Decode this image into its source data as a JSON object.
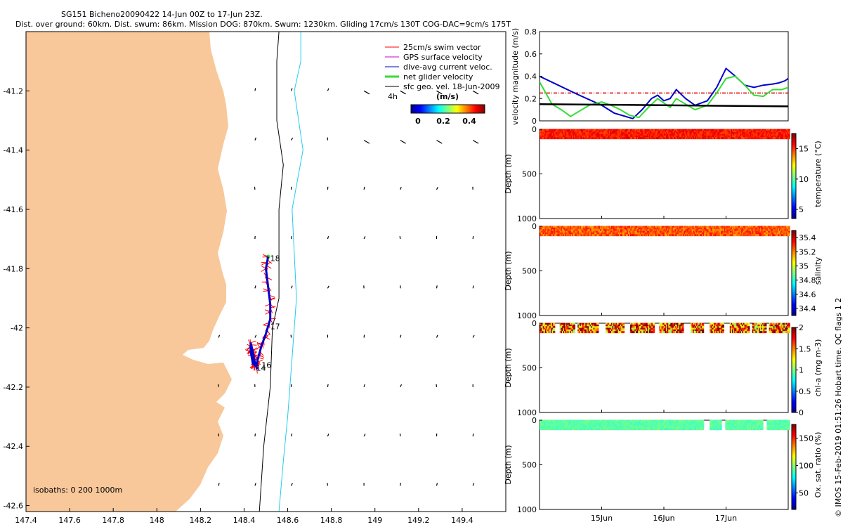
{
  "title": {
    "line1": "SG151 Bicheno20090422 14-Jun 00Z to 17-Jun 23Z.",
    "line2": "Dist. over ground: 60km. Dist. swum: 86km. Mission DOG: 870km. Swum: 1230km. Gliding 17cm/s 130T COG-DAC=9cm/s 175T"
  },
  "side_note": "© IMOS 15-Feb-2019 01:51:26 Hobart time. QC flags 1  2",
  "colors": {
    "land": "#f8c89b",
    "swim_vector": "#ff0000",
    "gps_velocity": "#cc00cc",
    "dac": "#0000cc",
    "net_velocity": "#33dd33",
    "sfc_geo": "#000000",
    "isobath_200": "#000000",
    "isobath_1000": "#22ccee",
    "threshold_line": "#dd0000"
  },
  "chart_data": [
    {
      "type": "scatter",
      "name": "map",
      "xlim": [
        147.4,
        149.6
      ],
      "ylim": [
        -42.62,
        -41.0
      ],
      "xticks": [
        "147.4",
        "147.6",
        "147.8",
        "148",
        "148.2",
        "148.4",
        "148.6",
        "148.8",
        "149",
        "149.2",
        "149.4"
      ],
      "yticks": [
        "-41.2",
        "-41.4",
        "-41.6",
        "-41.8",
        "-42",
        "-42.2",
        "-42.4",
        "-42.6"
      ],
      "legend": {
        "position": "top-right",
        "entries": [
          "25cm/s swim vector",
          "GPS surface velocity",
          "dive-avg current veloc.",
          "net glider velocity",
          "sfc geo. vel. 18-Jun-2009"
        ]
      },
      "scale_label": "4h",
      "colorbar": {
        "label": "(m/s)",
        "ticks": [
          "0",
          "0.2",
          "0.4"
        ],
        "range": [
          0,
          0.5
        ]
      },
      "isobath_label": "isobaths: 0   200   1000m",
      "day_labels": [
        {
          "text": "18",
          "lon": 148.52,
          "lat": -41.775
        },
        {
          "text": "17",
          "lon": 148.52,
          "lat": -42.005
        },
        {
          "text": "16",
          "lon": 148.48,
          "lat": -42.135
        },
        {
          "text": "14",
          "lon": 148.455,
          "lat": -42.145
        }
      ],
      "track": [
        [
          148.51,
          -41.76
        ],
        [
          148.5,
          -41.8
        ],
        [
          148.51,
          -41.86
        ],
        [
          148.52,
          -41.92
        ],
        [
          148.52,
          -41.97
        ],
        [
          148.5,
          -42.02
        ],
        [
          148.48,
          -42.06
        ],
        [
          148.465,
          -42.1
        ],
        [
          148.455,
          -42.13
        ],
        [
          148.44,
          -42.12
        ],
        [
          148.43,
          -42.08
        ],
        [
          148.43,
          -42.05
        ],
        [
          148.44,
          -42.08
        ],
        [
          148.45,
          -42.12
        ],
        [
          148.46,
          -42.14
        ]
      ],
      "isobath_200": [
        [
          148.56,
          -41.0
        ],
        [
          148.55,
          -41.1
        ],
        [
          148.55,
          -41.3
        ],
        [
          148.58,
          -41.45
        ],
        [
          148.56,
          -41.6
        ],
        [
          148.56,
          -41.9
        ],
        [
          148.53,
          -42.0
        ],
        [
          148.52,
          -42.2
        ],
        [
          148.49,
          -42.4
        ],
        [
          148.47,
          -42.62
        ]
      ],
      "isobath_1000": [
        [
          148.66,
          -41.0
        ],
        [
          148.66,
          -41.1
        ],
        [
          148.63,
          -41.2
        ],
        [
          148.67,
          -41.4
        ],
        [
          148.62,
          -41.6
        ],
        [
          148.64,
          -41.9
        ],
        [
          148.63,
          -42.0
        ],
        [
          148.62,
          -42.1
        ],
        [
          148.6,
          -42.3
        ],
        [
          148.58,
          -42.45
        ],
        [
          148.56,
          -42.62
        ]
      ]
    },
    {
      "type": "line",
      "name": "velocity",
      "ylabel": "velocity magnitude (m/s)",
      "ylim": [
        0,
        0.8
      ],
      "yticks": [
        "0",
        "0.2",
        "0.4",
        "0.6",
        "0.8"
      ],
      "xlim": [
        14.0,
        18.0
      ],
      "threshold": 0.25,
      "series": [
        {
          "color": "#0000cc",
          "x": [
            14.0,
            14.3,
            14.6,
            15.0,
            15.2,
            15.5,
            15.65,
            15.8,
            15.9,
            16.0,
            16.1,
            16.2,
            16.35,
            16.5,
            16.7,
            16.85,
            17.0,
            17.15,
            17.3,
            17.45,
            17.6,
            17.75,
            17.85,
            17.95,
            18.0
          ],
          "y": [
            0.4,
            0.32,
            0.24,
            0.14,
            0.07,
            0.02,
            0.1,
            0.2,
            0.23,
            0.18,
            0.2,
            0.28,
            0.2,
            0.14,
            0.18,
            0.3,
            0.47,
            0.4,
            0.32,
            0.3,
            0.32,
            0.33,
            0.34,
            0.36,
            0.38
          ]
        },
        {
          "color": "#33dd33",
          "x": [
            14.0,
            14.1,
            14.2,
            14.35,
            14.5,
            14.65,
            14.8,
            15.0,
            15.15,
            15.3,
            15.45,
            15.6,
            15.75,
            15.9,
            16.0,
            16.1,
            16.2,
            16.35,
            16.5,
            16.7,
            16.85,
            17.0,
            17.15,
            17.3,
            17.45,
            17.6,
            17.75,
            17.9,
            18.0
          ],
          "y": [
            0.35,
            0.25,
            0.15,
            0.1,
            0.04,
            0.09,
            0.14,
            0.17,
            0.14,
            0.1,
            0.05,
            0.03,
            0.12,
            0.2,
            0.16,
            0.12,
            0.2,
            0.15,
            0.1,
            0.14,
            0.25,
            0.38,
            0.4,
            0.32,
            0.23,
            0.22,
            0.28,
            0.28,
            0.3
          ]
        },
        {
          "color": "#000000",
          "x": [
            14.0,
            15.0,
            16.0,
            17.0,
            18.0
          ],
          "y": [
            0.15,
            0.145,
            0.14,
            0.135,
            0.13
          ]
        }
      ]
    },
    {
      "type": "scatter",
      "name": "temperature",
      "ylabel": "Depth (m)",
      "colorbar_label": "temperature (°C)",
      "ylim": [
        0,
        1000
      ],
      "yticks": [
        "0",
        "500",
        "1000"
      ],
      "cticks": [
        "5",
        "10",
        "15"
      ],
      "crange": [
        3.5,
        17.5
      ],
      "xlim": [
        14.0,
        18.0
      ],
      "data": {
        "x_start": 14.0,
        "x_end": 18.0,
        "depth_min": 5,
        "depth_max": 100,
        "value": 15.5,
        "value_spread": 0.8,
        "gaps": []
      }
    },
    {
      "type": "scatter",
      "name": "salinity",
      "ylabel": "Depth (m)",
      "colorbar_label": "salinity",
      "ylim": [
        0,
        1000
      ],
      "yticks": [
        "0",
        "500",
        "1000"
      ],
      "cticks": [
        "34.4",
        "34.6",
        "34.8",
        "35",
        "35.2",
        "35.4"
      ],
      "crange": [
        34.3,
        35.5
      ],
      "xlim": [
        14.0,
        18.0
      ],
      "data": {
        "x_start": 14.0,
        "x_end": 18.0,
        "depth_min": 5,
        "depth_max": 100,
        "value": 35.25,
        "value_spread": 0.1,
        "gaps": []
      }
    },
    {
      "type": "scatter",
      "name": "chl-a",
      "ylabel": "Depth (m)",
      "colorbar_label": "chl-a (mg m-3)",
      "ylim": [
        0,
        1000
      ],
      "yticks": [
        "0",
        "500",
        "1000"
      ],
      "cticks": [
        "0",
        "0.5",
        "1",
        "1.5",
        "2"
      ],
      "crange": [
        0,
        2
      ],
      "xlim": [
        14.0,
        18.0
      ],
      "data": {
        "x_start": 14.0,
        "x_end": 18.0,
        "depth_min": 5,
        "depth_max": 100,
        "value": 1.6,
        "value_spread": 0.6,
        "gaps": [
          [
            14.22,
            14.32
          ],
          [
            14.55,
            14.6
          ],
          [
            14.92,
            15.05
          ],
          [
            15.35,
            15.45
          ],
          [
            15.82,
            15.92
          ],
          [
            16.3,
            16.42
          ],
          [
            16.62,
            16.72
          ],
          [
            16.95,
            17.05
          ],
          [
            17.35,
            17.42
          ],
          [
            17.62,
            17.68
          ]
        ]
      }
    },
    {
      "type": "scatter",
      "name": "oxygen",
      "ylabel": "Depth (m)",
      "colorbar_label": "Ox. sat. ratio (%)",
      "ylim": [
        0,
        1000
      ],
      "yticks": [
        "0",
        "500",
        "1000"
      ],
      "cticks": [
        "50",
        "100",
        "150"
      ],
      "crange": [
        20,
        175
      ],
      "xlim": [
        14.0,
        18.0
      ],
      "xticks": [
        "15Jun",
        "16Jun",
        "17Jun"
      ],
      "xtick_values": [
        15,
        16,
        17
      ],
      "data": {
        "x_start": 14.0,
        "x_end": 18.0,
        "depth_min": 5,
        "depth_max": 100,
        "value": 92,
        "value_spread": 6,
        "gaps": [
          [
            16.62,
            16.72
          ],
          [
            16.9,
            16.98
          ],
          [
            17.58,
            17.64
          ]
        ]
      }
    }
  ]
}
